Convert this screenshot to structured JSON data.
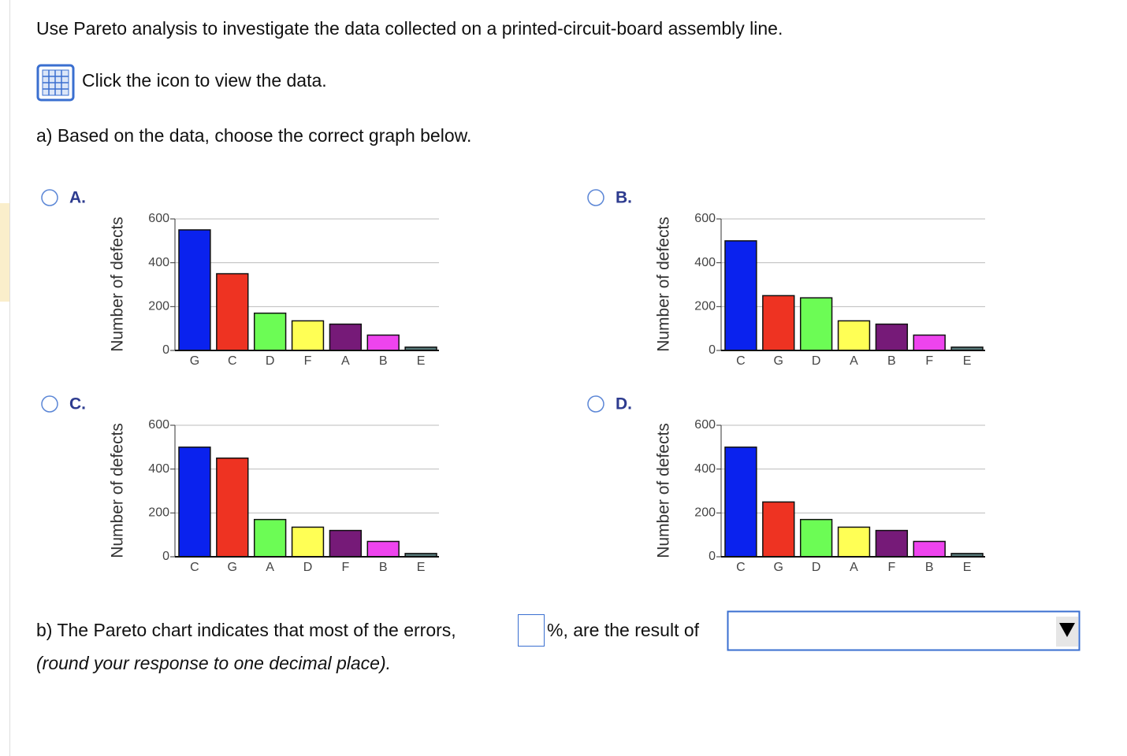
{
  "question": {
    "prompt": "Use Pareto analysis to investigate the data collected on a printed-circuit-board assembly line.",
    "data_link": "Click the icon to view the data.",
    "part_a": "a) Based on the data, choose the correct graph below.",
    "part_b_before": "b) The Pareto chart indicates that most of the errors,",
    "part_b_after": "%, are the result of",
    "part_b_note": "(round your response to one decimal place)."
  },
  "chart_data": [
    {
      "type": "bar",
      "title": "A.",
      "y_label": "Number of defects",
      "categories": [
        "G",
        "C",
        "D",
        "F",
        "A",
        "B",
        "E"
      ],
      "values": [
        550,
        350,
        170,
        135,
        120,
        70,
        15
      ],
      "colors": [
        "#0a22ee",
        "#ee3322",
        "#6cfc55",
        "#ffff55",
        "#761a78",
        "#ee44ee",
        "#557777"
      ],
      "ylim": [
        0,
        600
      ],
      "yticks": [
        0,
        200,
        400,
        600
      ],
      "grid": true
    },
    {
      "type": "bar",
      "title": "B.",
      "y_label": "Number of defects",
      "categories": [
        "C",
        "G",
        "D",
        "A",
        "B",
        "F",
        "E"
      ],
      "values": [
        500,
        250,
        240,
        135,
        120,
        70,
        15
      ],
      "colors": [
        "#0a22ee",
        "#ee3322",
        "#6cfc55",
        "#ffff55",
        "#761a78",
        "#ee44ee",
        "#557777"
      ],
      "ylim": [
        0,
        600
      ],
      "yticks": [
        0,
        200,
        400,
        600
      ],
      "grid": true
    },
    {
      "type": "bar",
      "title": "C.",
      "y_label": "Number of defects",
      "categories": [
        "C",
        "G",
        "A",
        "D",
        "F",
        "B",
        "E"
      ],
      "values": [
        500,
        450,
        170,
        135,
        120,
        70,
        15
      ],
      "colors": [
        "#0a22ee",
        "#ee3322",
        "#6cfc55",
        "#ffff55",
        "#761a78",
        "#ee44ee",
        "#557777"
      ],
      "ylim": [
        0,
        600
      ],
      "yticks": [
        0,
        200,
        400,
        600
      ],
      "grid": true
    },
    {
      "type": "bar",
      "title": "D.",
      "y_label": "Number of defects",
      "categories": [
        "C",
        "G",
        "D",
        "A",
        "F",
        "B",
        "E"
      ],
      "values": [
        500,
        250,
        170,
        135,
        120,
        70,
        15
      ],
      "colors": [
        "#0a22ee",
        "#ee3322",
        "#6cfc55",
        "#ffff55",
        "#761a78",
        "#ee44ee",
        "#557777"
      ],
      "ylim": [
        0,
        600
      ],
      "yticks": [
        0,
        200,
        400,
        600
      ],
      "grid": true
    }
  ]
}
